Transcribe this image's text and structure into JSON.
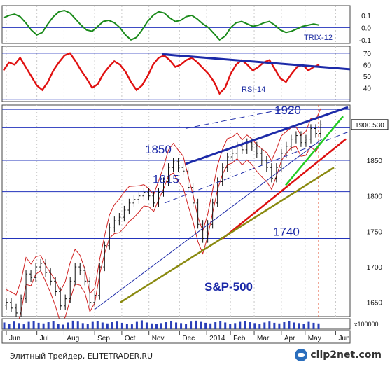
{
  "chart_data": [
    {
      "type": "line",
      "name": "TRIX-12",
      "label": "TRIX-12",
      "yticks": [
        "0.1",
        "0.0",
        "-0.1"
      ],
      "ytick_values": [
        0.1,
        0.0,
        -0.1
      ],
      "ylim": [
        -0.13,
        0.18
      ],
      "color": "#1a8a1a",
      "values": [
        0.08,
        0.1,
        0.11,
        0.09,
        0.04,
        -0.02,
        -0.06,
        -0.04,
        0.03,
        0.09,
        0.13,
        0.14,
        0.12,
        0.07,
        0.02,
        -0.02,
        -0.03,
        0.01,
        0.05,
        0.06,
        0.04,
        0.0,
        -0.06,
        -0.1,
        -0.08,
        -0.02,
        0.05,
        0.1,
        0.13,
        0.12,
        0.08,
        0.05,
        0.06,
        0.09,
        0.1,
        0.07,
        0.03,
        0.0,
        -0.05,
        -0.1,
        -0.07,
        0.0,
        0.04,
        0.05,
        0.03,
        0.01,
        0.02,
        0.04,
        0.05,
        0.02,
        -0.02,
        -0.04,
        -0.03,
        -0.01,
        0.01,
        0.02,
        0.03,
        0.02
      ]
    },
    {
      "type": "line",
      "name": "RSI-14",
      "label": "RSI-14",
      "yticks": [
        "70",
        "60",
        "50",
        "40"
      ],
      "ytick_values": [
        70,
        60,
        50,
        40
      ],
      "ylim": [
        28,
        76
      ],
      "color": "#e01010",
      "values": [
        55,
        62,
        60,
        66,
        58,
        50,
        42,
        38,
        45,
        55,
        62,
        68,
        70,
        63,
        55,
        48,
        40,
        43,
        52,
        58,
        63,
        60,
        54,
        45,
        38,
        42,
        50,
        60,
        66,
        68,
        64,
        58,
        60,
        64,
        66,
        62,
        57,
        52,
        45,
        35,
        40,
        52,
        60,
        64,
        60,
        55,
        58,
        62,
        64,
        56,
        48,
        45,
        52,
        58,
        60,
        55,
        58,
        60
      ]
    },
    {
      "type": "candlestick",
      "title": "S&P-500",
      "x_labels": [
        "Jun",
        "Jul",
        "Aug",
        "Sep",
        "Oct",
        "Nov",
        "Dec",
        "2014",
        "Feb",
        "Mar",
        "Apr",
        "May",
        "Jun"
      ],
      "yticks": [
        "1850",
        "1800",
        "1750",
        "1700",
        "1650"
      ],
      "ytick_values": [
        1850,
        1800,
        1750,
        1700,
        1650
      ],
      "ylim": [
        1630,
        1928
      ],
      "last_price": "1900.530",
      "close": [
        1650,
        1642,
        1635,
        1655,
        1690,
        1685,
        1700,
        1705,
        1692,
        1680,
        1665,
        1645,
        1655,
        1680,
        1700,
        1695,
        1680,
        1650,
        1660,
        1700,
        1730,
        1755,
        1765,
        1770,
        1780,
        1790,
        1795,
        1800,
        1805,
        1800,
        1790,
        1805,
        1820,
        1840,
        1848,
        1840,
        1835,
        1812,
        1790,
        1760,
        1740,
        1760,
        1790,
        1820,
        1840,
        1855,
        1860,
        1870,
        1865,
        1875,
        1870,
        1860,
        1850,
        1840,
        1825,
        1840,
        1860,
        1870,
        1880,
        1885,
        1875,
        1880,
        1895,
        1888,
        1900
      ],
      "levels": [
        {
          "label": "1920",
          "value": 1922
        },
        {
          "label": "",
          "value": 1896
        },
        {
          "label": "1850",
          "value": 1850
        },
        {
          "label": "1815",
          "value": 1814
        },
        {
          "label": "",
          "value": 1806
        },
        {
          "label": "1740",
          "value": 1740
        }
      ],
      "annotations": [
        "1920",
        "1850",
        "1815",
        "1740",
        "S&P-500"
      ]
    },
    {
      "type": "bar",
      "name": "Volume",
      "unit_label": "x100000",
      "values": [
        22,
        18,
        25,
        20,
        16,
        24,
        27,
        21,
        19,
        23,
        26,
        18,
        15,
        22,
        28,
        25,
        20,
        17,
        24,
        27,
        22,
        19,
        23,
        25,
        21,
        18,
        16,
        24,
        29,
        22,
        19,
        17,
        20,
        23,
        26,
        22,
        20,
        18,
        25,
        28,
        24,
        21,
        19,
        23,
        26,
        22,
        18,
        20,
        24,
        27,
        23,
        20,
        18,
        22,
        25,
        21,
        19,
        23,
        26,
        22,
        20,
        18,
        24,
        21,
        19
      ]
    }
  ],
  "footer": {
    "credit": "Элитный Трейдер, ELITETRADER.RU",
    "logo": "clip2net.com"
  }
}
